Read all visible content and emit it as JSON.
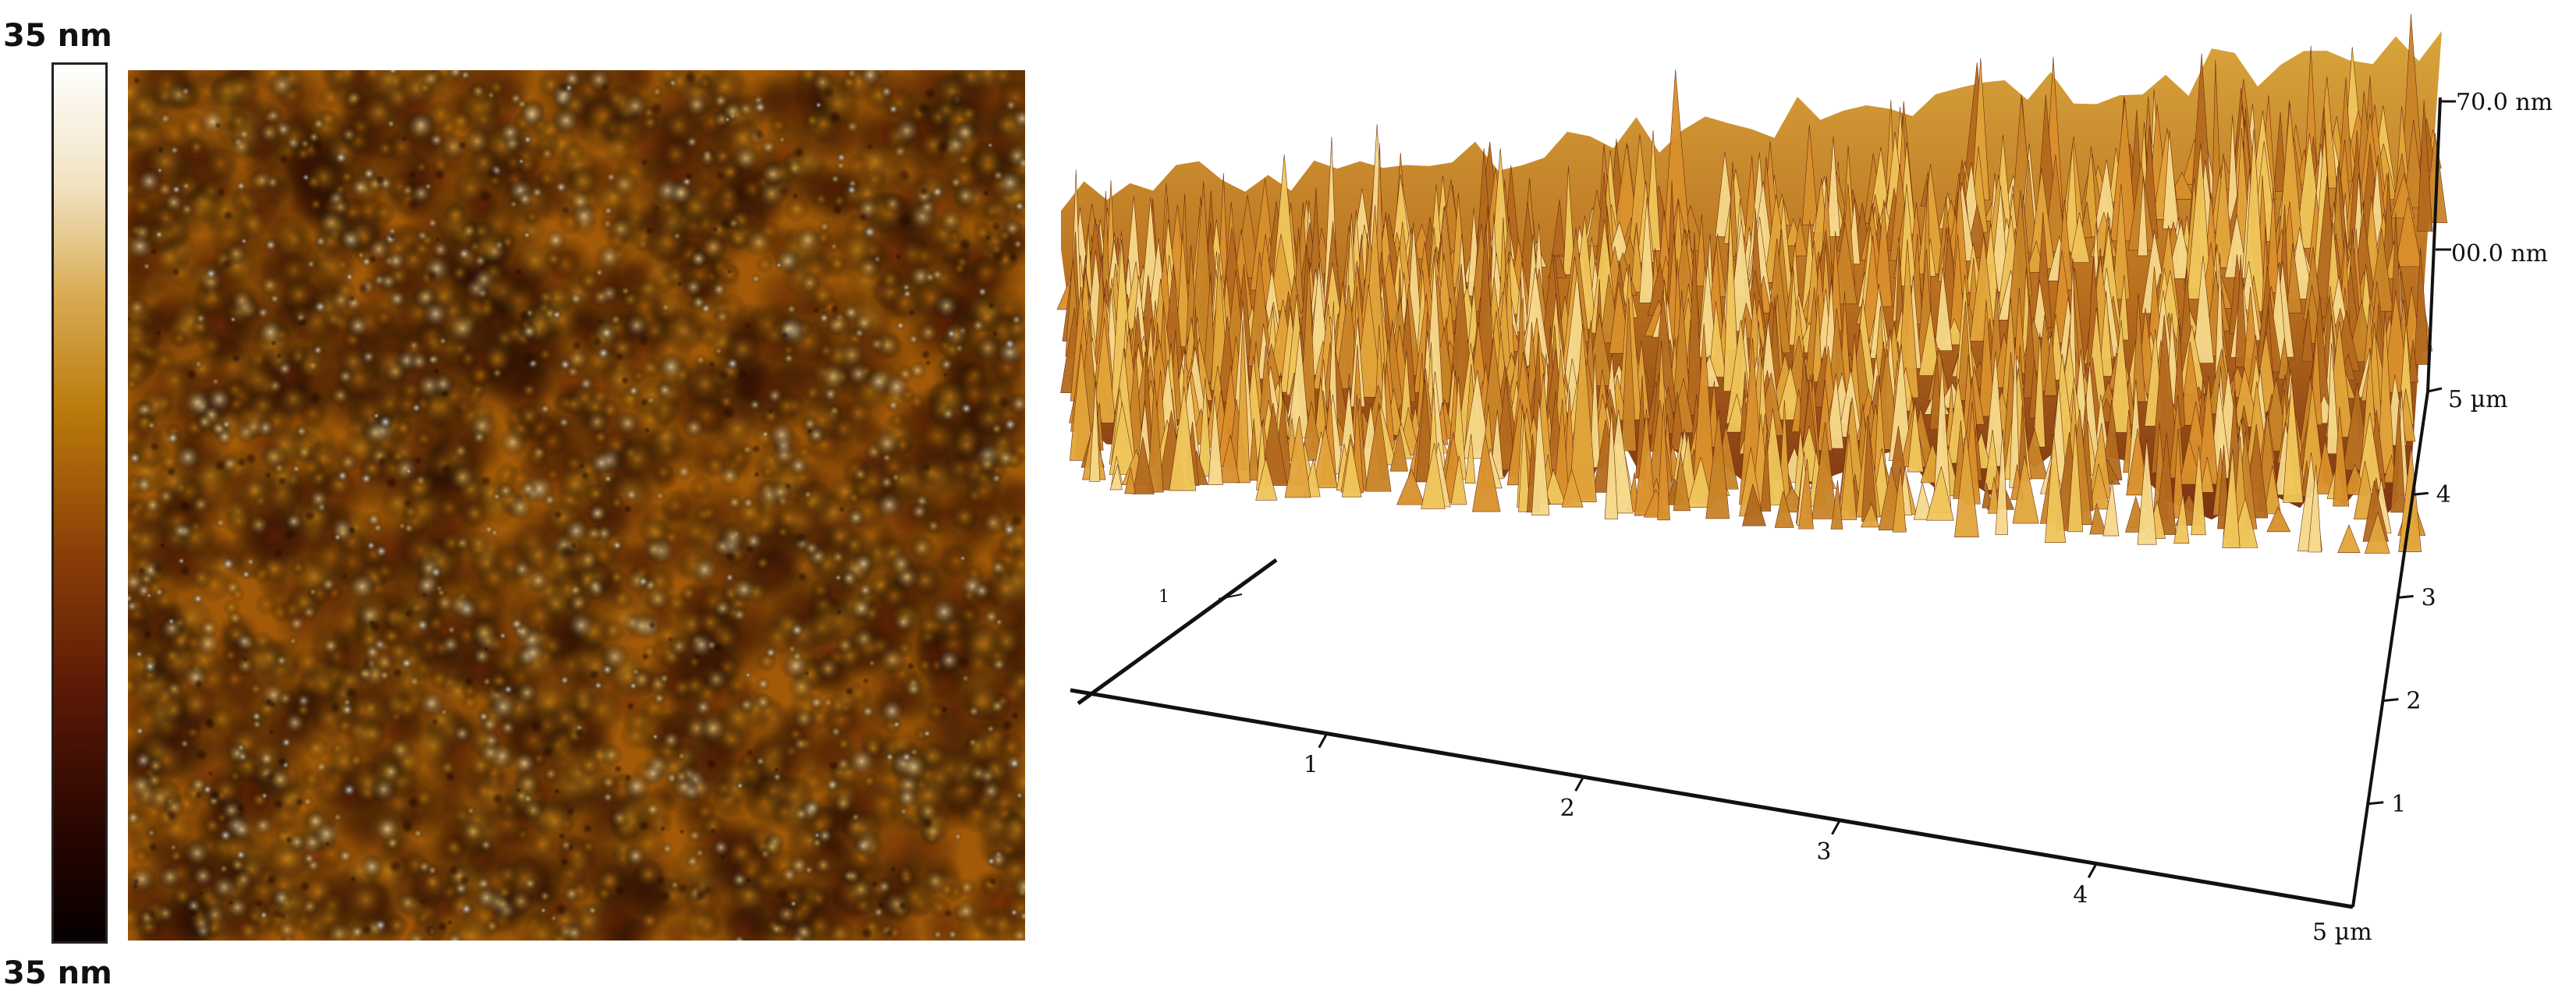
{
  "colorbar": {
    "top_label": "35 nm",
    "bottom_label": "35 nm",
    "colors": [
      "#ffffff",
      "#f1e2c0",
      "#d9ad55",
      "#b9780a",
      "#8a3e08",
      "#5a1806",
      "#260500",
      "#050000"
    ]
  },
  "image_2d": {
    "palette": {
      "dark": "#3a0e02",
      "mid": "#a35a08",
      "bright": "#f0d08a"
    }
  },
  "plot_3d": {
    "z_top_label": "70.0 nm",
    "z_mid_label": "00.0 nm",
    "x_ticks": [
      "1",
      "2",
      "3",
      "4"
    ],
    "x_end_label": "5 µm",
    "y_ticks": [
      "1",
      "2",
      "3",
      "4"
    ],
    "y_end_label": "5 µm",
    "back_tick": "1"
  }
}
